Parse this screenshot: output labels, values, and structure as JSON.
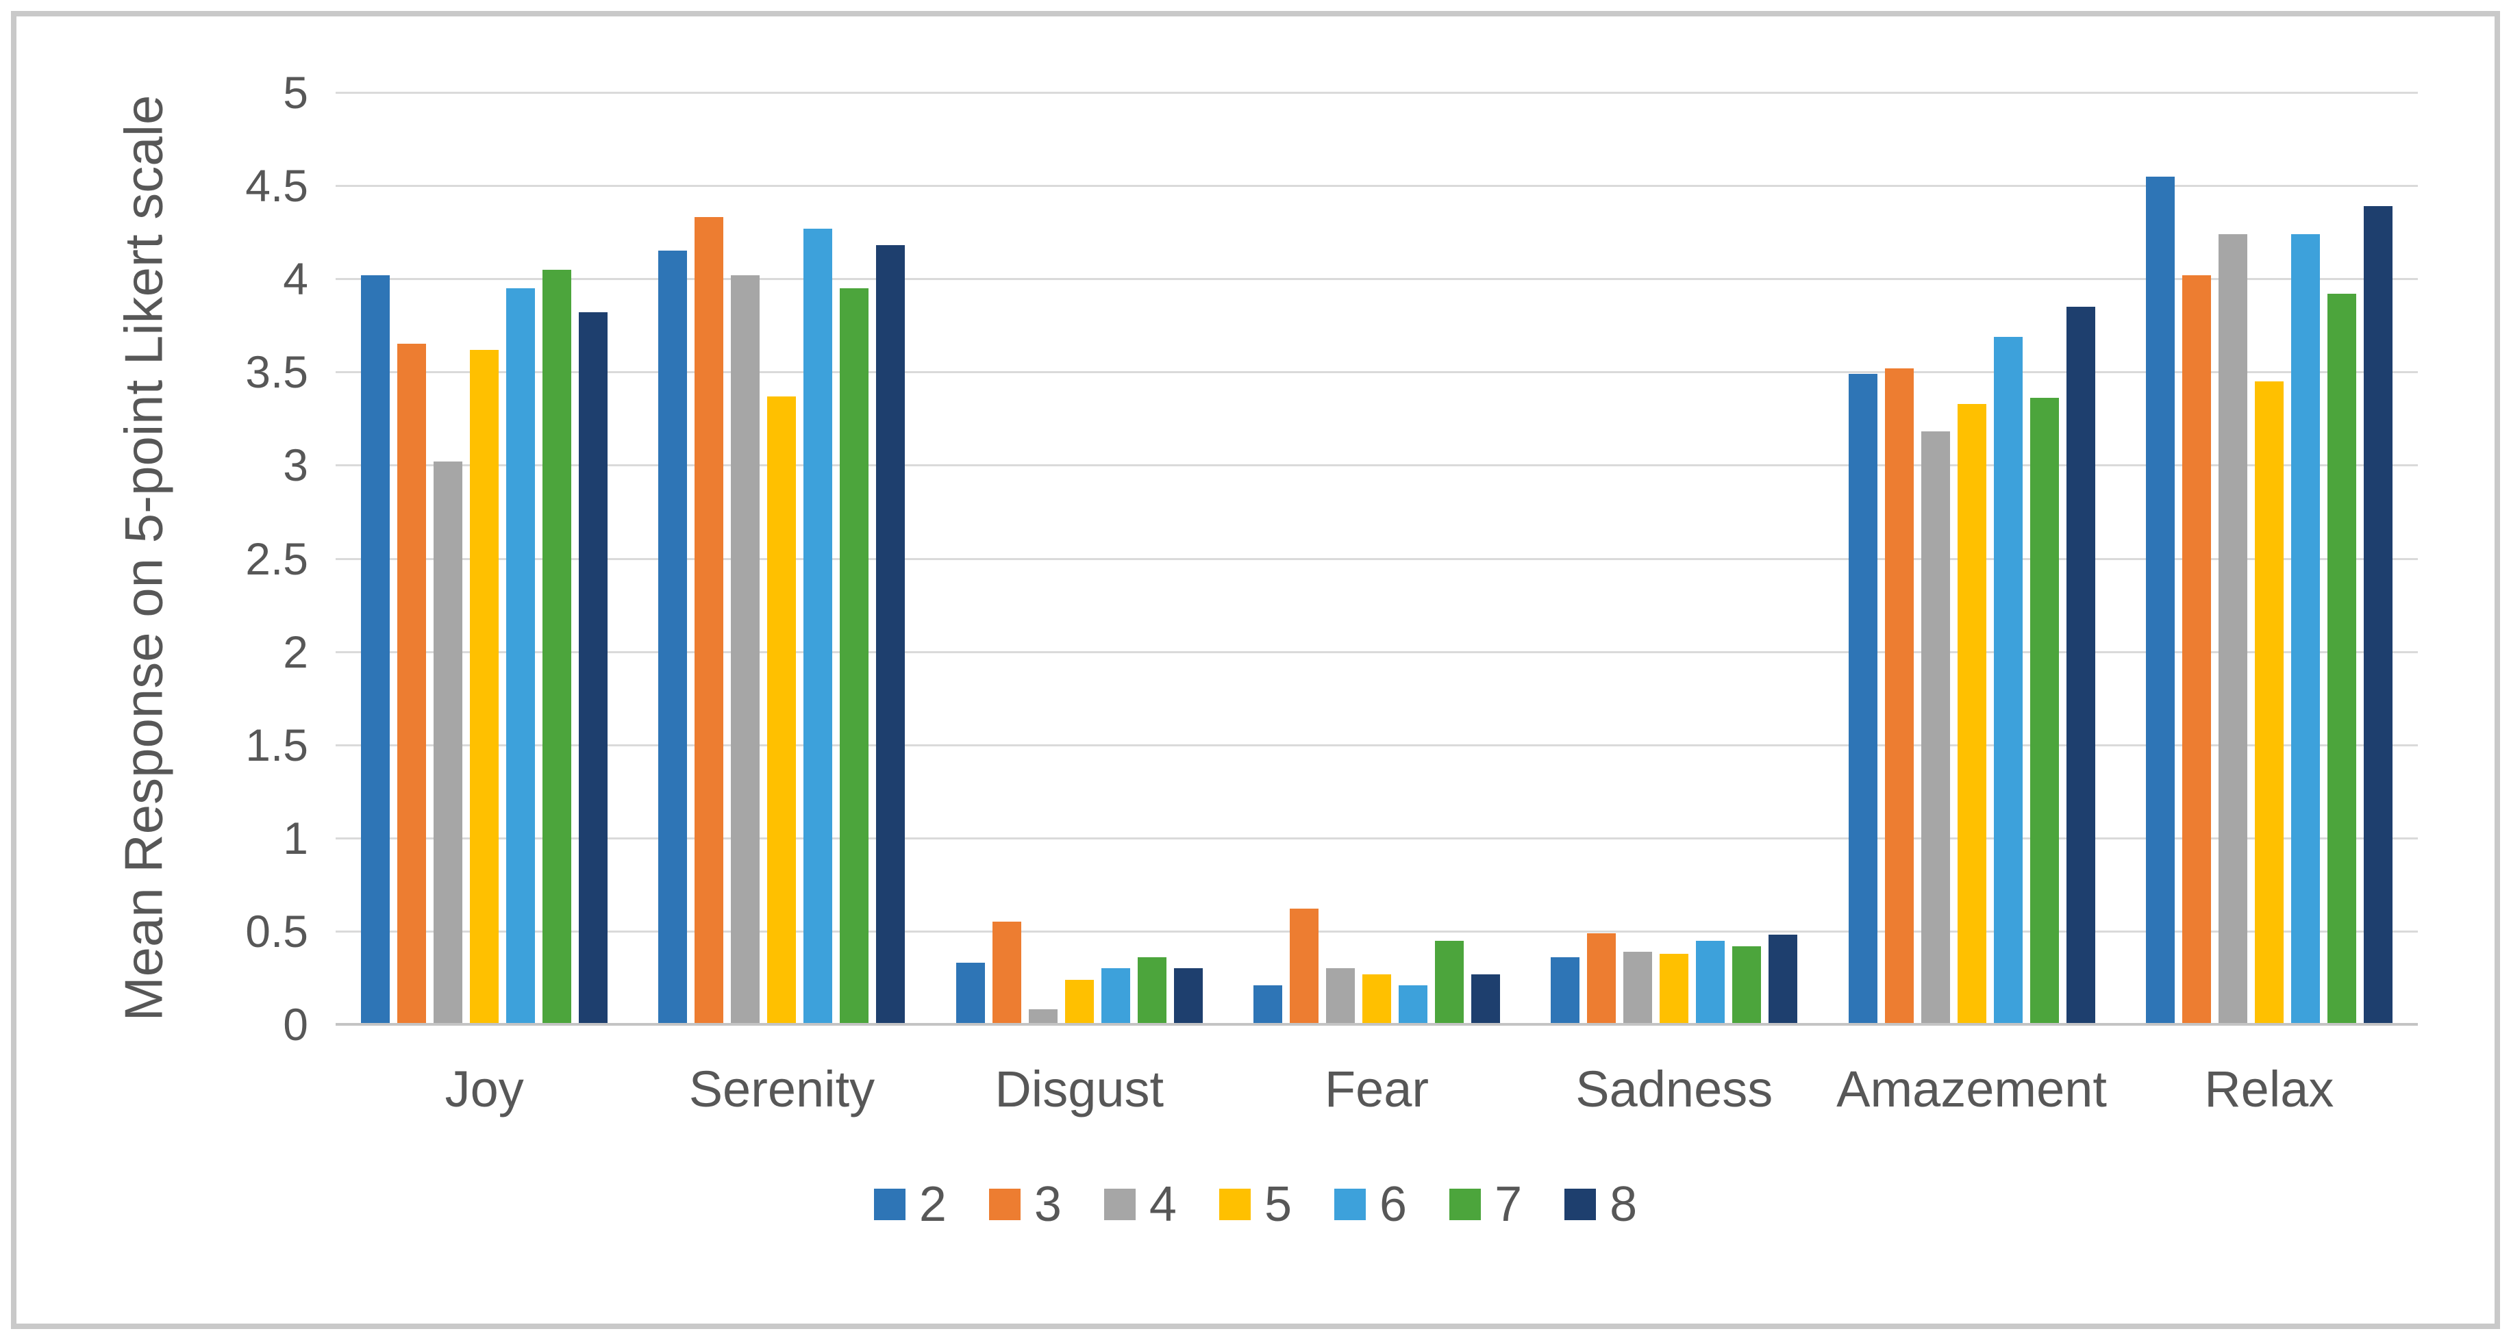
{
  "chart_data": {
    "type": "bar",
    "title": "",
    "xlabel": "",
    "ylabel": "Mean Response on 5-point Likert scale",
    "ylim": [
      0,
      5
    ],
    "yticks": [
      0,
      0.5,
      1,
      1.5,
      2,
      2.5,
      3,
      3.5,
      4,
      4.5,
      5
    ],
    "grid": "horizontal",
    "legend_position": "bottom",
    "categories": [
      "Joy",
      "Serenity",
      "Disgust",
      "Fear",
      "Sadness",
      "Amazement",
      "Relax"
    ],
    "series": [
      {
        "name": "2",
        "color": "#2E75B6",
        "values": [
          4.02,
          4.15,
          0.33,
          0.21,
          0.36,
          3.49,
          4.55
        ]
      },
      {
        "name": "3",
        "color": "#ED7D31",
        "values": [
          3.65,
          4.33,
          0.55,
          0.62,
          0.49,
          3.52,
          4.02
        ]
      },
      {
        "name": "4",
        "color": "#A6A6A6",
        "values": [
          3.02,
          4.02,
          0.08,
          0.3,
          0.39,
          3.18,
          4.24
        ]
      },
      {
        "name": "5",
        "color": "#FFC000",
        "values": [
          3.62,
          3.37,
          0.24,
          0.27,
          0.38,
          3.33,
          3.45
        ]
      },
      {
        "name": "6",
        "color": "#3DA1DB",
        "values": [
          3.95,
          4.27,
          0.3,
          0.21,
          0.45,
          3.69,
          4.24
        ]
      },
      {
        "name": "7",
        "color": "#4CA53C",
        "values": [
          4.05,
          3.95,
          0.36,
          0.45,
          0.42,
          3.36,
          3.92
        ]
      },
      {
        "name": "8",
        "color": "#1E3F6E",
        "values": [
          3.82,
          4.18,
          0.3,
          0.27,
          0.48,
          3.85,
          4.39
        ]
      }
    ]
  }
}
